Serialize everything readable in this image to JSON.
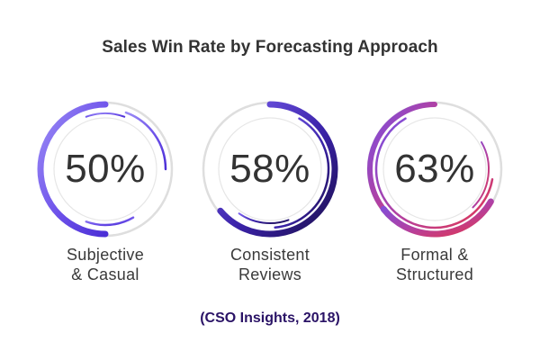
{
  "title": "Sales Win Rate by Forecasting Approach",
  "source": "(CSO Insights, 2018)",
  "chart_data": {
    "type": "radial-gauge",
    "title": "Sales Win Rate by Forecasting Approach",
    "unit": "%",
    "max": 100,
    "items": [
      {
        "value": 50,
        "display": "50%",
        "label_lines": [
          "Subjective",
          "& Casual"
        ],
        "colors": [
          "#9b8cf6",
          "#6e52ea",
          "#4b2fd6"
        ]
      },
      {
        "value": 58,
        "display": "58%",
        "label_lines": [
          "Consistent",
          "Reviews"
        ],
        "colors": [
          "#7a60f0",
          "#3a22a8",
          "#1c0f4f"
        ]
      },
      {
        "value": 63,
        "display": "63%",
        "label_lines": [
          "Formal &",
          "Structured"
        ],
        "colors": [
          "#7b4fe0",
          "#b340a0",
          "#e2364f"
        ]
      }
    ],
    "track_color": "#dedede"
  }
}
